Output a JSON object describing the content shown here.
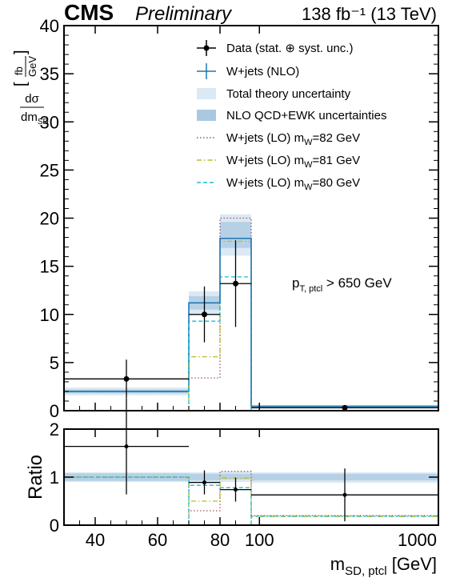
{
  "header": {
    "experiment": "CMS",
    "status": "Preliminary",
    "lumi": "138 fb⁻¹ (13 TeV)"
  },
  "annotation": {
    "cut_main": "p",
    "cut_sub": "T, ptcl",
    "cut_rest": " > 650 GeV"
  },
  "axes": {
    "ylabel_top": "dσ",
    "ylabel_bottom": "dm",
    "ylabel_bottom_sub": "SD",
    "ylabel_unit_top": "fb",
    "ylabel_unit_bottom": "GeV",
    "ratio_label": "Ratio",
    "xlabel_main": "m",
    "xlabel_sub": "SD, ptcl",
    "xlabel_unit": " [GeV]"
  },
  "legend": {
    "data": "Data (stat. ⊕ syst. unc.)",
    "nlo": "W+jets (NLO)",
    "total_theory": "Total theory uncertainty",
    "nlo_unc": "NLO QCD+EWK uncertainties",
    "lo82_pre": "W+jets (LO) m",
    "lo82_post": "=82 GeV",
    "lo81_pre": "W+jets (LO) m",
    "lo81_post": "=81 GeV",
    "lo80_pre": "W+jets (LO) m",
    "lo80_post": "=80 GeV",
    "mass_sub": "W"
  },
  "colors": {
    "data": "#000000",
    "nlo": "#1f77b4",
    "total_band": "#dbe9f4",
    "nlo_band": "#a9c8e2",
    "lo82": "#9a5b5b",
    "lo81": "#bcbd22",
    "lo80": "#17becf"
  },
  "chart_data": [
    {
      "type": "histogram",
      "panel": "main",
      "xlim": [
        30,
        1000
      ],
      "ylim": [
        0,
        40
      ],
      "x_ticks": [
        40,
        60,
        80,
        100,
        1000
      ],
      "y_ticks": [
        0,
        5,
        10,
        15,
        20,
        25,
        30,
        35,
        40
      ],
      "bins": [
        [
          30,
          70
        ],
        [
          70,
          80
        ],
        [
          80,
          90
        ],
        [
          90,
          1000
        ]
      ],
      "series": [
        {
          "key": "data",
          "name": "Data (stat. ⊕ syst. unc.)",
          "x": [
            50,
            75,
            85,
            300
          ],
          "values": [
            3.3,
            10.0,
            13.2,
            0.3
          ],
          "err": [
            2.0,
            2.9,
            4.5,
            0.1
          ]
        },
        {
          "key": "nlo",
          "name": "W+jets (NLO)",
          "values": [
            2.0,
            11.2,
            17.9,
            0.45
          ]
        },
        {
          "key": "total",
          "name": "Total theory uncertainty",
          "lo": [
            1.6,
            9.9,
            16.1,
            0.3
          ],
          "hi": [
            2.4,
            12.4,
            20.4,
            0.6
          ]
        },
        {
          "key": "nlo_unc",
          "name": "NLO QCD+EWK uncertainties",
          "lo": [
            1.8,
            10.5,
            16.9,
            0.35
          ],
          "hi": [
            2.2,
            11.9,
            19.6,
            0.55
          ]
        },
        {
          "key": "lo82",
          "name": "W+jets (LO) mW=82 GeV",
          "values": [
            2.0,
            3.4,
            20.0,
            0.45
          ]
        },
        {
          "key": "lo81",
          "name": "W+jets (LO) mW=81 GeV",
          "values": [
            2.0,
            5.6,
            17.6,
            0.45
          ]
        },
        {
          "key": "lo80",
          "name": "W+jets (LO) mW=80 GeV",
          "values": [
            2.0,
            9.3,
            13.9,
            0.45
          ]
        }
      ]
    },
    {
      "type": "histogram",
      "panel": "ratio",
      "xlim": [
        30,
        1000
      ],
      "ylim": [
        0,
        2
      ],
      "y_ticks": [
        0,
        1,
        2
      ],
      "bins": [
        [
          30,
          70
        ],
        [
          70,
          80
        ],
        [
          80,
          90
        ],
        [
          90,
          1000
        ]
      ],
      "series": [
        {
          "key": "data",
          "x": [
            50,
            75,
            85,
            300
          ],
          "values": [
            1.64,
            0.89,
            0.74,
            0.63
          ],
          "err": [
            1.0,
            0.25,
            0.25,
            0.55
          ]
        },
        {
          "key": "total",
          "lo": [
            0.9,
            0.88,
            0.9,
            0.88
          ],
          "hi": [
            1.1,
            1.1,
            1.12,
            1.1
          ]
        },
        {
          "key": "nlo_unc",
          "lo": [
            0.92,
            0.93,
            0.95,
            0.93
          ],
          "hi": [
            1.08,
            1.07,
            1.07,
            1.07
          ]
        },
        {
          "key": "lo82",
          "values": [
            1.0,
            0.3,
            1.12,
            0.2
          ]
        },
        {
          "key": "lo81",
          "values": [
            1.0,
            0.5,
            0.98,
            0.18
          ]
        },
        {
          "key": "lo80",
          "values": [
            1.0,
            0.83,
            0.78,
            0.19
          ]
        }
      ]
    }
  ]
}
